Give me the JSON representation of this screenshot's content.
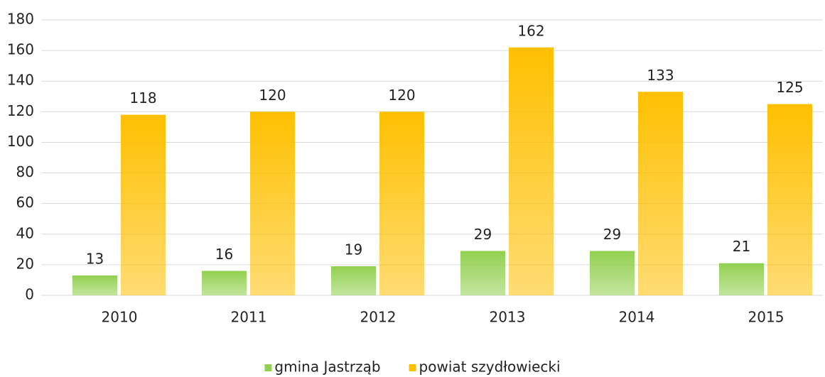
{
  "chart_data": {
    "type": "bar",
    "categories": [
      "2010",
      "2011",
      "2012",
      "2013",
      "2014",
      "2015"
    ],
    "series": [
      {
        "name": "gmina Jastrząb",
        "color": "#92d050",
        "values": [
          13,
          16,
          19,
          29,
          29,
          21
        ]
      },
      {
        "name": "powiat szydłowiecki",
        "color": "#ffc000",
        "values": [
          118,
          120,
          120,
          162,
          133,
          125
        ]
      }
    ],
    "ylim": [
      0,
      180
    ],
    "yticks": [
      0,
      20,
      40,
      60,
      80,
      100,
      120,
      140,
      160,
      180
    ],
    "grid": true,
    "legend": "bottom"
  }
}
